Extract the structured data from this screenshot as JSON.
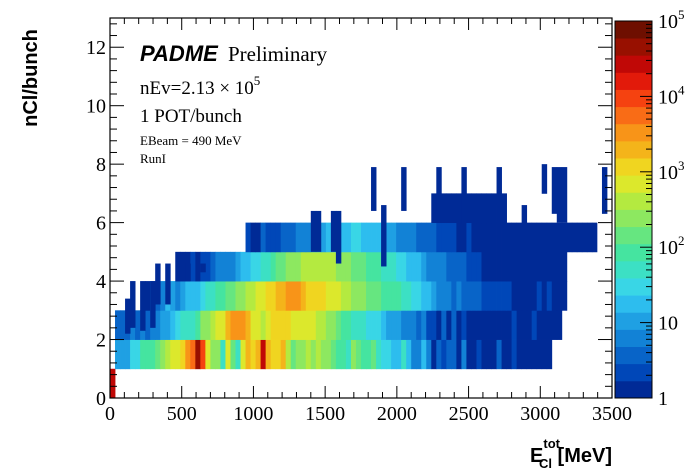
{
  "chart_data": {
    "type": "heatmap",
    "title": "",
    "xlabel": {
      "base": "E",
      "sup": "tot",
      "sub": "Cl",
      "unit": " [MeV]"
    },
    "ylabel": "nCl/bunch",
    "xlim": [
      0,
      3500
    ],
    "ylim": [
      0,
      13
    ],
    "x_ticks": [
      0,
      500,
      1000,
      1500,
      2000,
      2500,
      3000,
      3500
    ],
    "y_ticks": [
      0,
      2,
      4,
      6,
      8,
      10,
      12
    ],
    "z_scale": "log",
    "zlim": [
      1,
      100000
    ],
    "z_tick_labels": [
      {
        "value": 1,
        "base": "1",
        "exp": ""
      },
      {
        "value": 10,
        "base": "10",
        "exp": ""
      },
      {
        "value": 100,
        "base": "10",
        "exp": "2"
      },
      {
        "value": 1000,
        "base": "10",
        "exp": "3"
      },
      {
        "value": 10000,
        "base": "10",
        "exp": "4"
      },
      {
        "value": 100000,
        "base": "10",
        "exp": "5"
      }
    ],
    "bin_width_x": 35,
    "y_bins": [
      {
        "y0": 0,
        "y1": 1,
        "start": 0,
        "values": [
          30000
        ]
      },
      {
        "y0": 1,
        "y1": 2,
        "start": 1,
        "values": [
          11,
          12,
          13,
          25,
          38,
          80,
          110,
          95,
          120,
          260,
          400,
          700,
          900,
          1100,
          3000,
          6000,
          45000,
          9000,
          600,
          300,
          220,
          40,
          900,
          120,
          45,
          800,
          1800,
          1500,
          2200,
          35000,
          1800,
          1100,
          1000,
          2500,
          500,
          180,
          220,
          300,
          400,
          230,
          380,
          260,
          220,
          160,
          100,
          80,
          60,
          300,
          130,
          90,
          110,
          150,
          40,
          35,
          25,
          20,
          16,
          40,
          14,
          8,
          6,
          14,
          5,
          1,
          4,
          2,
          4,
          3,
          1,
          6,
          1,
          1,
          2,
          1,
          1,
          1,
          4,
          1,
          1,
          2,
          1,
          1,
          1,
          1,
          1,
          1,
          1
        ]
      },
      {
        "y0": 2,
        "y1": 3,
        "start": 1,
        "values": [
          3,
          3,
          3,
          5,
          3,
          5,
          4,
          7,
          8,
          10,
          12,
          16,
          25,
          45,
          45,
          60,
          80,
          200,
          300,
          500,
          700,
          900,
          2000,
          2800,
          3200,
          2800,
          1600,
          900,
          700,
          500,
          800,
          1000,
          1500,
          1200,
          1000,
          900,
          850,
          700,
          650,
          600,
          500,
          320,
          250,
          200,
          130,
          90,
          80,
          60,
          40,
          40,
          30,
          25,
          25,
          14,
          11,
          9,
          13,
          8,
          7,
          6,
          4,
          5,
          2,
          2,
          1,
          3,
          1,
          3,
          1,
          2,
          1,
          1,
          1,
          1,
          1,
          1,
          1,
          1,
          1,
          2,
          1,
          1,
          1,
          2,
          1,
          1,
          1,
          1,
          1
        ]
      },
      {
        "y0": 3,
        "y1": 4,
        "start": 7,
        "values": [
          1,
          5,
          3,
          6,
          15,
          12,
          8,
          10,
          14,
          22,
          18,
          30,
          45,
          60,
          80,
          110,
          130,
          160,
          250,
          300,
          400,
          500,
          700,
          900,
          1000,
          1400,
          1600,
          2200,
          2800,
          3500,
          2800,
          2100,
          1500,
          1400,
          1200,
          1000,
          900,
          700,
          600,
          500,
          350,
          280,
          250,
          200,
          180,
          150,
          120,
          110,
          90,
          80,
          70,
          50,
          40,
          30,
          25,
          18,
          14,
          10,
          8,
          6,
          6,
          4,
          5,
          4,
          3,
          3,
          3,
          2,
          2,
          2,
          2,
          2,
          2,
          1,
          1,
          1,
          1,
          1,
          2,
          1,
          2,
          1,
          1,
          1
        ]
      },
      {
        "y0": 4,
        "y1": 5,
        "start": 13,
        "values": [
          1,
          1,
          1,
          2,
          1,
          2,
          2,
          3,
          5,
          6,
          5,
          8,
          10,
          14,
          18,
          25,
          35,
          50,
          60,
          80,
          120,
          160,
          200,
          240,
          280,
          320,
          380,
          420,
          450,
          400,
          380,
          330,
          300,
          260,
          220,
          180,
          150,
          120,
          100,
          90,
          70,
          60,
          50,
          40,
          30,
          25,
          20,
          16,
          14,
          10,
          8,
          6,
          6,
          5,
          4,
          3,
          3,
          3,
          2,
          2,
          2,
          1,
          1,
          1,
          1,
          1,
          1,
          1,
          1,
          1,
          1,
          1,
          1,
          1,
          1,
          1,
          1,
          1
        ]
      },
      {
        "y0": 5,
        "y1": 6,
        "start": 27,
        "values": [
          2,
          1,
          1,
          3,
          2,
          2,
          2,
          3,
          3,
          4,
          6,
          6,
          8,
          10,
          10,
          12,
          14,
          16,
          18,
          20,
          22,
          24,
          25,
          22,
          20,
          18,
          16,
          14,
          12,
          10,
          8,
          8,
          6,
          5,
          4,
          4,
          3,
          3,
          2,
          2,
          2,
          2,
          1,
          1,
          2,
          1,
          1,
          1,
          1,
          1,
          1,
          1,
          1,
          1,
          1,
          1,
          1,
          1,
          1,
          1,
          1,
          1,
          1,
          1,
          1,
          1,
          1,
          1,
          1,
          1
        ]
      },
      {
        "y0": 6,
        "y1": 7,
        "start": 64,
        "values": [
          1,
          1,
          1,
          1,
          1,
          1,
          1,
          1,
          1,
          1,
          1,
          1,
          1,
          1,
          1
        ]
      },
      {
        "y0": 7,
        "y1": 8,
        "start": 86,
        "values": [
          1
        ]
      }
    ],
    "sparse_cells": [
      {
        "i": 3,
        "y0": 2.2,
        "y1": 3.4
      },
      {
        "i": 4,
        "y0": 2.4,
        "y1": 4.0
      },
      {
        "i": 6,
        "y0": 2.3,
        "y1": 4.0
      },
      {
        "i": 8,
        "y0": 2.4,
        "y1": 4.0
      },
      {
        "i": 9,
        "y0": 3.2,
        "y1": 4.6
      },
      {
        "i": 11,
        "y0": 3.2,
        "y1": 4.6
      },
      {
        "i": 15,
        "y0": 4.0,
        "y1": 4.6
      },
      {
        "i": 18,
        "y0": 4.3,
        "y1": 4.6
      },
      {
        "i": 40,
        "y0": 5.0,
        "y1": 6.4
      },
      {
        "i": 41,
        "y0": 5.0,
        "y1": 6.4
      },
      {
        "i": 44,
        "y0": 5.0,
        "y1": 6.4
      },
      {
        "i": 45,
        "y0": 4.6,
        "y1": 6.4
      },
      {
        "i": 52,
        "y0": 6.4,
        "y1": 7.9
      },
      {
        "i": 54,
        "y0": 4.5,
        "y1": 6.6
      },
      {
        "i": 58,
        "y0": 6.4,
        "y1": 7.9
      },
      {
        "i": 65,
        "y0": 6.4,
        "y1": 7.9
      },
      {
        "i": 70,
        "y0": 6.0,
        "y1": 7.9
      },
      {
        "i": 77,
        "y0": 6.6,
        "y1": 7.9
      },
      {
        "i": 82,
        "y0": 5.0,
        "y1": 6.6
      },
      {
        "i": 88,
        "y0": 6.3,
        "y1": 7.9
      },
      {
        "i": 89,
        "y0": 6.0,
        "y1": 7.9
      },
      {
        "i": 90,
        "y0": 6.0,
        "y1": 7.9
      },
      {
        "i": 98,
        "y0": 6.3,
        "y1": 7.9
      }
    ],
    "annotations": {
      "experiment": "PADME",
      "status": "Preliminary",
      "events_prefix": "nEv=2.13 × 10",
      "events_exp": "5",
      "pot": "1 POT/bunch",
      "beam": "EBeam = 490 MeV",
      "run": "RunI"
    },
    "colors": {
      "palette": [
        "#002a96",
        "#0047b8",
        "#0864c8",
        "#1282d6",
        "#1fa0e3",
        "#2dbdee",
        "#39d6e6",
        "#3ce0c4",
        "#45e4a0",
        "#66e680",
        "#8de860",
        "#b4ea40",
        "#dce82c",
        "#f0d520",
        "#f4b41a",
        "#f89418",
        "#f96c16",
        "#f54210",
        "#e21a0a",
        "#c00806",
        "#981000",
        "#6e0f00"
      ],
      "frame": "#000000"
    }
  }
}
